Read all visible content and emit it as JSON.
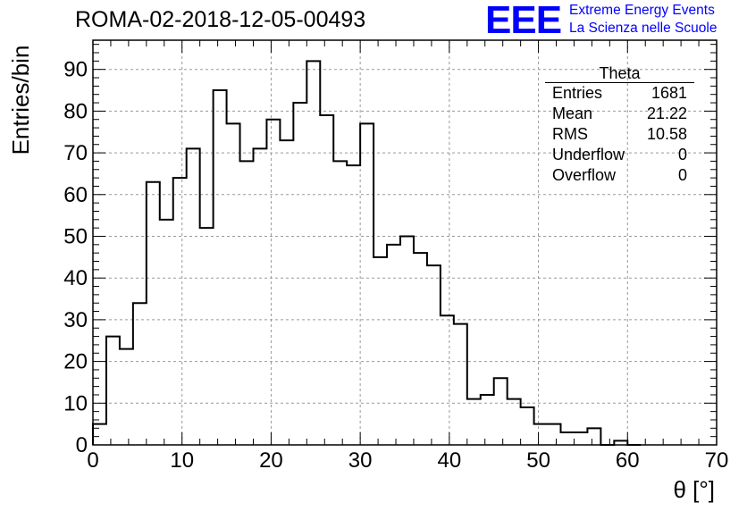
{
  "title": "ROMA-02-2018-12-05-00493",
  "logo": {
    "mark": "EEE",
    "line1": "Extreme Energy Events",
    "line2": "La Scienza nelle Scuole",
    "color": "#0000ff"
  },
  "stats": {
    "name": "Theta",
    "rows": [
      {
        "label": "Entries",
        "value": "1681"
      },
      {
        "label": "Mean",
        "value": "21.22"
      },
      {
        "label": "RMS",
        "value": "10.58"
      },
      {
        "label": "Underflow",
        "value": "0"
      },
      {
        "label": "Overflow",
        "value": "0"
      }
    ]
  },
  "chart_data": {
    "type": "bar",
    "subtype": "step-histogram",
    "xlabel": "θ [°]",
    "ylabel": "Entries/bin",
    "xlim": [
      0,
      70
    ],
    "ylim": [
      0,
      97
    ],
    "bin_width": 1.5,
    "bin_edges_start": 0,
    "values": [
      5,
      26,
      23,
      34,
      63,
      54,
      64,
      71,
      52,
      85,
      77,
      68,
      71,
      78,
      73,
      82,
      92,
      79,
      68,
      67,
      77,
      45,
      48,
      50,
      46,
      43,
      31,
      29,
      11,
      12,
      16,
      11,
      9,
      5,
      5,
      3,
      3,
      4,
      0,
      1,
      0
    ],
    "xticks": [
      0,
      10,
      20,
      30,
      40,
      50,
      60,
      70
    ],
    "yticks": [
      0,
      10,
      20,
      30,
      40,
      50,
      60,
      70,
      80,
      90
    ],
    "grid": true,
    "line_color": "#000000"
  }
}
